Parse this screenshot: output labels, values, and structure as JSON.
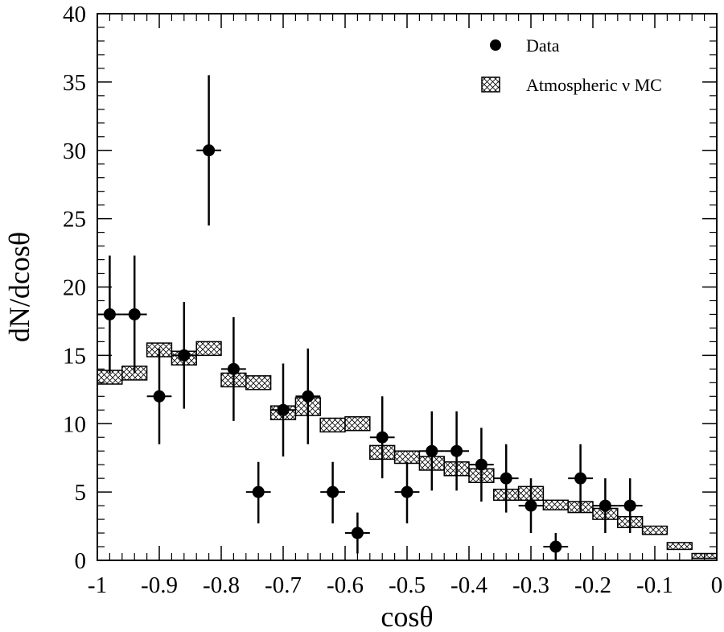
{
  "chart_data": {
    "type": "scatter",
    "title": "",
    "xlabel": "cosθ",
    "ylabel": "dN/dcosθ",
    "xlim": [
      -1,
      0
    ],
    "ylim": [
      0,
      40
    ],
    "x_ticks": [
      -1,
      -0.9,
      -0.8,
      -0.7,
      -0.6,
      -0.5,
      -0.4,
      -0.3,
      -0.2,
      -0.1,
      0
    ],
    "x_tick_labels": [
      "-1",
      "-0.9",
      "-0.8",
      "-0.7",
      "-0.6",
      "-0.5",
      "-0.4",
      "-0.3",
      "-0.2",
      "-0.1",
      "0"
    ],
    "y_ticks": [
      0,
      5,
      10,
      15,
      20,
      25,
      30,
      35,
      40
    ],
    "y_tick_labels": [
      "0",
      "5",
      "10",
      "15",
      "20",
      "25",
      "30",
      "35",
      "40"
    ],
    "grid": false,
    "legend_position": "top-right",
    "legend": [
      {
        "label": "Data",
        "marker": "filled-circle"
      },
      {
        "label": "Atmospheric ν MC",
        "marker": "hatched-box"
      }
    ],
    "series": [
      {
        "name": "Data",
        "type": "points",
        "x_halfwidth": 0.02,
        "points": [
          {
            "x": -0.98,
            "y": 18,
            "err_low": 4.3,
            "err_high": 4.3
          },
          {
            "x": -0.94,
            "y": 18,
            "err_low": 4.3,
            "err_high": 4.3
          },
          {
            "x": -0.9,
            "y": 12,
            "err_low": 3.5,
            "err_high": 3.5
          },
          {
            "x": -0.86,
            "y": 15,
            "err_low": 3.9,
            "err_high": 3.9
          },
          {
            "x": -0.82,
            "y": 30,
            "err_low": 5.5,
            "err_high": 5.5
          },
          {
            "x": -0.78,
            "y": 14,
            "err_low": 3.8,
            "err_high": 3.8
          },
          {
            "x": -0.74,
            "y": 5,
            "err_low": 2.3,
            "err_high": 2.2
          },
          {
            "x": -0.7,
            "y": 11,
            "err_low": 3.4,
            "err_high": 3.4
          },
          {
            "x": -0.66,
            "y": 12,
            "err_low": 3.5,
            "err_high": 3.5
          },
          {
            "x": -0.62,
            "y": 5,
            "err_low": 2.3,
            "err_high": 2.2
          },
          {
            "x": -0.58,
            "y": 2,
            "err_low": 1.5,
            "err_high": 1.5
          },
          {
            "x": -0.54,
            "y": 9,
            "err_low": 3.0,
            "err_high": 3.0
          },
          {
            "x": -0.5,
            "y": 5,
            "err_low": 2.3,
            "err_high": 2.2
          },
          {
            "x": -0.46,
            "y": 8,
            "err_low": 2.9,
            "err_high": 2.9
          },
          {
            "x": -0.42,
            "y": 8,
            "err_low": 2.9,
            "err_high": 2.9
          },
          {
            "x": -0.38,
            "y": 7,
            "err_low": 2.7,
            "err_high": 2.7
          },
          {
            "x": -0.34,
            "y": 6,
            "err_low": 2.5,
            "err_high": 2.5
          },
          {
            "x": -0.3,
            "y": 4,
            "err_low": 2.0,
            "err_high": 2.0
          },
          {
            "x": -0.26,
            "y": 1,
            "err_low": 1.0,
            "err_high": 1.0
          },
          {
            "x": -0.22,
            "y": 6,
            "err_low": 2.5,
            "err_high": 2.5
          },
          {
            "x": -0.18,
            "y": 4,
            "err_low": 2.0,
            "err_high": 2.0
          },
          {
            "x": -0.14,
            "y": 4,
            "err_low": 2.0,
            "err_high": 2.0
          }
        ]
      },
      {
        "name": "Atmospheric ν MC",
        "type": "boxes",
        "x_halfwidth": 0.02,
        "bins": [
          {
            "x": -0.98,
            "y_low": 12.9,
            "y_high": 13.9
          },
          {
            "x": -0.94,
            "y_low": 13.2,
            "y_high": 14.2
          },
          {
            "x": -0.9,
            "y_low": 14.9,
            "y_high": 15.9
          },
          {
            "x": -0.86,
            "y_low": 14.3,
            "y_high": 15.3
          },
          {
            "x": -0.82,
            "y_low": 15.0,
            "y_high": 16.0
          },
          {
            "x": -0.78,
            "y_low": 12.7,
            "y_high": 13.7
          },
          {
            "x": -0.74,
            "y_low": 12.5,
            "y_high": 13.5
          },
          {
            "x": -0.7,
            "y_low": 10.3,
            "y_high": 11.3
          },
          {
            "x": -0.66,
            "y_low": 10.6,
            "y_high": 11.9
          },
          {
            "x": -0.62,
            "y_low": 9.4,
            "y_high": 10.4
          },
          {
            "x": -0.58,
            "y_low": 9.5,
            "y_high": 10.5
          },
          {
            "x": -0.54,
            "y_low": 7.4,
            "y_high": 8.4
          },
          {
            "x": -0.5,
            "y_low": 7.1,
            "y_high": 8.0
          },
          {
            "x": -0.46,
            "y_low": 6.6,
            "y_high": 7.6
          },
          {
            "x": -0.42,
            "y_low": 6.2,
            "y_high": 7.2
          },
          {
            "x": -0.38,
            "y_low": 5.7,
            "y_high": 6.7
          },
          {
            "x": -0.34,
            "y_low": 4.4,
            "y_high": 5.2
          },
          {
            "x": -0.3,
            "y_low": 4.4,
            "y_high": 5.4
          },
          {
            "x": -0.26,
            "y_low": 3.7,
            "y_high": 4.4
          },
          {
            "x": -0.22,
            "y_low": 3.5,
            "y_high": 4.3
          },
          {
            "x": -0.18,
            "y_low": 3.0,
            "y_high": 3.8
          },
          {
            "x": -0.14,
            "y_low": 2.4,
            "y_high": 3.2
          },
          {
            "x": -0.1,
            "y_low": 1.9,
            "y_high": 2.5
          },
          {
            "x": -0.06,
            "y_low": 0.8,
            "y_high": 1.3
          },
          {
            "x": -0.02,
            "y_low": 0.15,
            "y_high": 0.5
          }
        ]
      }
    ]
  }
}
